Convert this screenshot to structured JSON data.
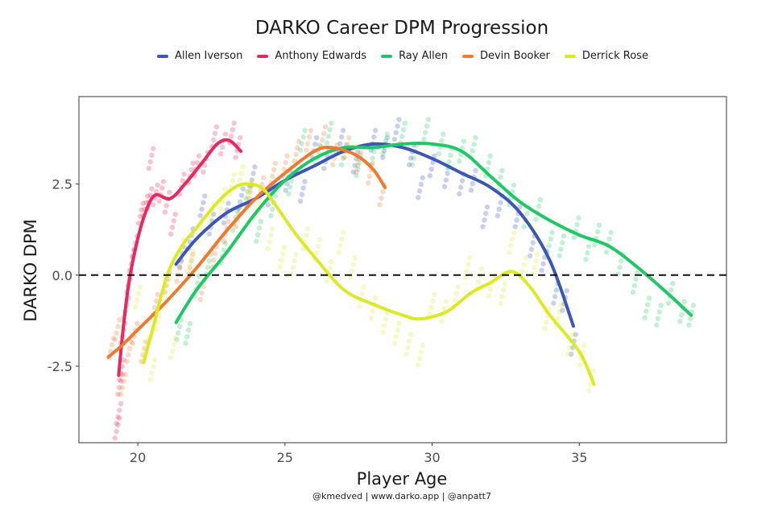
{
  "chart_data": {
    "type": "scatter",
    "title": "DARKO Career DPM Progression",
    "xlabel": "Player Age",
    "ylabel": "DARKO DPM",
    "caption": "@kmedved | www.darko.app | @anpatt7",
    "xlim": [
      18,
      40
    ],
    "ylim": [
      -4.6,
      4.9
    ],
    "xticks": [
      20,
      25,
      30,
      35
    ],
    "yticks": [
      -2.5,
      0.0,
      2.5
    ],
    "ytick_labels": [
      "-2.5",
      "0.0",
      "2.5"
    ],
    "reference_line_y": 0,
    "legend_position": "top",
    "grid": false,
    "series": [
      {
        "name": "Allen Iverson",
        "color": "#3a57b7",
        "smooth": [
          [
            21.3,
            0.3
          ],
          [
            22,
            1.0
          ],
          [
            23,
            1.7
          ],
          [
            24,
            2.1
          ],
          [
            25,
            2.6
          ],
          [
            26,
            3.0
          ],
          [
            27,
            3.4
          ],
          [
            28,
            3.6
          ],
          [
            29,
            3.5
          ],
          [
            30,
            3.2
          ],
          [
            31,
            2.8
          ],
          [
            32,
            2.4
          ],
          [
            33,
            1.7
          ],
          [
            34,
            0.4
          ],
          [
            34.8,
            -1.4
          ]
        ],
        "points": [
          [
            21.5,
            0.5
          ],
          [
            21.8,
            1.0
          ],
          [
            22.2,
            1.9
          ],
          [
            22.5,
            1.4
          ],
          [
            23.0,
            1.7
          ],
          [
            23.5,
            2.1
          ],
          [
            23.9,
            2.7
          ],
          [
            24.5,
            2.2
          ],
          [
            25.1,
            2.6
          ],
          [
            25.6,
            2.3
          ],
          [
            26.0,
            3.5
          ],
          [
            26.4,
            3.2
          ],
          [
            26.9,
            3.7
          ],
          [
            27.4,
            3.1
          ],
          [
            28.0,
            3.7
          ],
          [
            28.4,
            3.5
          ],
          [
            28.8,
            4.0
          ],
          [
            29.3,
            3.3
          ],
          [
            29.6,
            2.4
          ],
          [
            30.0,
            3.0
          ],
          [
            30.5,
            2.7
          ],
          [
            31.0,
            2.5
          ],
          [
            31.4,
            2.6
          ],
          [
            31.8,
            1.6
          ],
          [
            32.3,
            1.9
          ],
          [
            32.9,
            1.6
          ],
          [
            33.4,
            0.8
          ],
          [
            33.8,
            0.4
          ],
          [
            34.2,
            -0.5
          ],
          [
            34.5,
            -0.7
          ],
          [
            34.8,
            -1.9
          ]
        ]
      },
      {
        "name": "Anthony Edwards",
        "color": "#e8295e",
        "smooth": [
          [
            19.35,
            -2.75
          ],
          [
            19.5,
            -1.5
          ],
          [
            19.7,
            -0.2
          ],
          [
            20.0,
            1.0
          ],
          [
            20.3,
            1.8
          ],
          [
            20.6,
            2.2
          ],
          [
            21.1,
            2.1
          ],
          [
            21.6,
            2.5
          ],
          [
            22.2,
            3.1
          ],
          [
            22.7,
            3.6
          ],
          [
            23.1,
            3.7
          ],
          [
            23.5,
            3.4
          ]
        ],
        "points": [
          [
            19.3,
            -4.2
          ],
          [
            19.35,
            -3.8
          ],
          [
            19.4,
            -3.0
          ],
          [
            19.45,
            -2.6
          ],
          [
            19.5,
            -1.6
          ],
          [
            19.6,
            -0.9
          ],
          [
            19.7,
            -0.2
          ],
          [
            19.8,
            0.4
          ],
          [
            19.9,
            0.8
          ],
          [
            20.1,
            1.7
          ],
          [
            20.25,
            1.9
          ],
          [
            20.4,
            2.1
          ],
          [
            20.45,
            3.2
          ],
          [
            20.6,
            2.2
          ],
          [
            20.8,
            2.3
          ],
          [
            21.0,
            2.0
          ],
          [
            21.2,
            1.4
          ],
          [
            21.5,
            2.5
          ],
          [
            21.8,
            2.8
          ],
          [
            22.0,
            3.0
          ],
          [
            22.3,
            3.1
          ],
          [
            22.6,
            3.8
          ],
          [
            22.9,
            3.6
          ],
          [
            23.2,
            3.9
          ],
          [
            23.4,
            3.5
          ]
        ]
      },
      {
        "name": "Ray Allen",
        "color": "#1fc864",
        "smooth": [
          [
            21.3,
            -1.3
          ],
          [
            22,
            -0.4
          ],
          [
            23,
            0.6
          ],
          [
            24,
            1.7
          ],
          [
            25,
            2.6
          ],
          [
            26,
            3.2
          ],
          [
            27,
            3.5
          ],
          [
            28,
            3.5
          ],
          [
            29,
            3.6
          ],
          [
            30,
            3.6
          ],
          [
            31,
            3.4
          ],
          [
            32,
            2.7
          ],
          [
            33,
            2.0
          ],
          [
            34,
            1.5
          ],
          [
            35,
            1.1
          ],
          [
            36,
            0.8
          ],
          [
            37,
            0.2
          ],
          [
            38,
            -0.5
          ],
          [
            38.8,
            -1.1
          ]
        ],
        "points": [
          [
            21.4,
            -1.5
          ],
          [
            21.7,
            -1.6
          ],
          [
            22.0,
            -0.3
          ],
          [
            22.4,
            0.3
          ],
          [
            22.9,
            0.6
          ],
          [
            23.3,
            1.5
          ],
          [
            23.7,
            2.2
          ],
          [
            24.1,
            1.2
          ],
          [
            24.6,
            1.9
          ],
          [
            25.2,
            2.5
          ],
          [
            25.6,
            3.7
          ],
          [
            26.1,
            3.3
          ],
          [
            26.5,
            3.9
          ],
          [
            27.0,
            3.3
          ],
          [
            27.5,
            3.0
          ],
          [
            28.0,
            3.3
          ],
          [
            28.4,
            3.6
          ],
          [
            29.0,
            3.9
          ],
          [
            29.4,
            3.3
          ],
          [
            29.8,
            4.0
          ],
          [
            30.3,
            3.6
          ],
          [
            30.6,
            3.2
          ],
          [
            31.0,
            3.4
          ],
          [
            31.4,
            3.5
          ],
          [
            31.9,
            3.0
          ],
          [
            32.3,
            2.6
          ],
          [
            32.7,
            2.2
          ],
          [
            33.2,
            1.6
          ],
          [
            33.6,
            1.8
          ],
          [
            34.0,
            0.9
          ],
          [
            34.4,
            0.8
          ],
          [
            34.9,
            1.3
          ],
          [
            35.3,
            0.7
          ],
          [
            35.6,
            1.1
          ],
          [
            36.0,
            0.9
          ],
          [
            36.4,
            0.3
          ],
          [
            36.9,
            -0.2
          ],
          [
            37.3,
            -0.9
          ],
          [
            37.7,
            -1.1
          ],
          [
            38.1,
            -0.5
          ],
          [
            38.5,
            -1.0
          ],
          [
            38.8,
            -1.1
          ]
        ]
      },
      {
        "name": "Devin Booker",
        "color": "#ee7a30",
        "smooth": [
          [
            19.0,
            -2.25
          ],
          [
            19.5,
            -1.9
          ],
          [
            20.0,
            -1.5
          ],
          [
            21.0,
            -0.7
          ],
          [
            22.0,
            0.2
          ],
          [
            23.0,
            1.2
          ],
          [
            24.0,
            2.1
          ],
          [
            25.0,
            2.8
          ],
          [
            26.0,
            3.4
          ],
          [
            26.6,
            3.5
          ],
          [
            27.4,
            3.3
          ],
          [
            28.0,
            2.9
          ],
          [
            28.4,
            2.4
          ]
        ],
        "points": [
          [
            19.1,
            -2.0
          ],
          [
            19.3,
            -1.5
          ],
          [
            19.5,
            -3.0
          ],
          [
            19.7,
            -2.1
          ],
          [
            19.9,
            -1.6
          ],
          [
            20.2,
            -2.1
          ],
          [
            20.6,
            -0.8
          ],
          [
            21.0,
            -0.2
          ],
          [
            21.4,
            0.1
          ],
          [
            21.8,
            0.3
          ],
          [
            22.2,
            -0.4
          ],
          [
            22.6,
            0.5
          ],
          [
            23.0,
            1.2
          ],
          [
            23.4,
            1.6
          ],
          [
            23.8,
            2.2
          ],
          [
            24.2,
            2.4
          ],
          [
            24.6,
            2.8
          ],
          [
            25.0,
            3.0
          ],
          [
            25.4,
            3.4
          ],
          [
            25.8,
            3.7
          ],
          [
            26.3,
            3.8
          ],
          [
            26.7,
            3.3
          ],
          [
            27.1,
            3.5
          ],
          [
            27.5,
            3.1
          ],
          [
            27.9,
            2.8
          ],
          [
            28.3,
            2.2
          ]
        ]
      },
      {
        "name": "Derrick Rose",
        "color": "#dde928",
        "smooth": [
          [
            20.2,
            -2.4
          ],
          [
            20.5,
            -1.5
          ],
          [
            21.0,
            0.0
          ],
          [
            21.5,
            0.8
          ],
          [
            22.0,
            1.3
          ],
          [
            22.6,
            1.9
          ],
          [
            23.1,
            2.3
          ],
          [
            23.6,
            2.5
          ],
          [
            24.2,
            2.4
          ],
          [
            24.7,
            1.9
          ],
          [
            25.3,
            1.2
          ],
          [
            26.0,
            0.5
          ],
          [
            27.0,
            -0.4
          ],
          [
            28.0,
            -0.8
          ],
          [
            29.0,
            -1.1
          ],
          [
            29.6,
            -1.2
          ],
          [
            30.5,
            -1.0
          ],
          [
            31.3,
            -0.5
          ],
          [
            32.0,
            -0.2
          ],
          [
            32.7,
            0.1
          ],
          [
            33.3,
            -0.3
          ],
          [
            34.0,
            -1.1
          ],
          [
            35.0,
            -2.1
          ],
          [
            35.5,
            -3.0
          ]
        ],
        "points": [
          [
            20.0,
            -0.6
          ],
          [
            20.3,
            -2.0
          ],
          [
            20.5,
            -2.6
          ],
          [
            20.7,
            -1.2
          ],
          [
            21.0,
            -0.2
          ],
          [
            21.2,
            -2.0
          ],
          [
            21.5,
            0.7
          ],
          [
            21.8,
            0.4
          ],
          [
            22.1,
            1.2
          ],
          [
            22.5,
            1.7
          ],
          [
            22.9,
            2.1
          ],
          [
            23.2,
            2.5
          ],
          [
            23.5,
            2.7
          ],
          [
            23.8,
            2.3
          ],
          [
            24.1,
            1.9
          ],
          [
            24.5,
            1.0
          ],
          [
            24.9,
            0.5
          ],
          [
            25.3,
            0.3
          ],
          [
            25.7,
            1.0
          ],
          [
            26.1,
            0.7
          ],
          [
            26.5,
            0.1
          ],
          [
            26.9,
            0.9
          ],
          [
            27.3,
            0.2
          ],
          [
            27.6,
            -0.6
          ],
          [
            28.0,
            -0.9
          ],
          [
            28.4,
            -1.3
          ],
          [
            28.8,
            -1.6
          ],
          [
            29.2,
            -1.9
          ],
          [
            29.6,
            -2.2
          ],
          [
            30.0,
            -0.8
          ],
          [
            30.4,
            -1.0
          ],
          [
            30.8,
            -0.6
          ],
          [
            31.2,
            0.2
          ],
          [
            31.6,
            -0.1
          ],
          [
            32.0,
            -0.3
          ],
          [
            32.4,
            -0.5
          ],
          [
            32.7,
            0.9
          ],
          [
            33.1,
            0.2
          ],
          [
            33.5,
            0.3
          ],
          [
            33.9,
            -1.2
          ],
          [
            34.3,
            -1.1
          ],
          [
            34.7,
            -1.9
          ],
          [
            35.1,
            -2.2
          ],
          [
            35.4,
            -2.9
          ]
        ]
      }
    ]
  }
}
